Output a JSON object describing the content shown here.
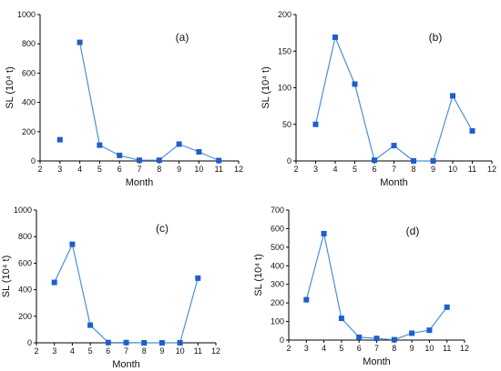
{
  "chart_data": [
    {
      "type": "line",
      "panel_label": "(a)",
      "xlabel": "Month",
      "ylabel": "SL (10⁴ t)",
      "xlim": [
        2,
        12
      ],
      "ylim": [
        0,
        1000
      ],
      "xticks": [
        "2",
        "3",
        "4",
        "5",
        "6",
        "7",
        "8",
        "9",
        "10",
        "11",
        "12"
      ],
      "yticks": [
        "0",
        "200",
        "400",
        "600",
        "800",
        "1000"
      ],
      "x": [
        3,
        4,
        5,
        6,
        7,
        8,
        9,
        10,
        11
      ],
      "y": [
        145,
        810,
        108,
        38,
        5,
        5,
        115,
        62,
        3
      ],
      "segments": [
        [
          1,
          8
        ]
      ]
    },
    {
      "type": "line",
      "panel_label": "(b)",
      "xlabel": "Month",
      "ylabel": "SL (10⁴ t)",
      "xlim": [
        2,
        12
      ],
      "ylim": [
        0,
        200
      ],
      "xticks": [
        "2",
        "3",
        "4",
        "5",
        "6",
        "7",
        "8",
        "9",
        "10",
        "11",
        "12"
      ],
      "yticks": [
        "0",
        "50",
        "100",
        "150",
        "200"
      ],
      "x": [
        3,
        4,
        5,
        6,
        7,
        8,
        9,
        10,
        11
      ],
      "y": [
        50,
        169,
        105,
        1,
        21,
        0,
        0,
        89,
        41
      ],
      "segments": [
        [
          0,
          8
        ]
      ]
    },
    {
      "type": "line",
      "panel_label": "(c)",
      "xlabel": "Month",
      "ylabel": "SL (10⁴ t)",
      "xlim": [
        2,
        12
      ],
      "ylim": [
        0,
        1000
      ],
      "xticks": [
        "2",
        "3",
        "4",
        "5",
        "6",
        "7",
        "8",
        "9",
        "10",
        "11",
        "12"
      ],
      "yticks": [
        "0",
        "200",
        "400",
        "600",
        "800",
        "1000"
      ],
      "x": [
        3,
        4,
        5,
        6,
        7,
        8,
        9,
        10,
        11
      ],
      "y": [
        455,
        742,
        133,
        2,
        2,
        0,
        0,
        0,
        487
      ],
      "segments": [
        [
          0,
          8
        ]
      ]
    },
    {
      "type": "line",
      "panel_label": "(d)",
      "xlabel": "Month",
      "ylabel": "SL (10⁴ t)",
      "xlim": [
        2,
        12
      ],
      "ylim": [
        0,
        700
      ],
      "xticks": [
        "2",
        "3",
        "4",
        "5",
        "6",
        "7",
        "8",
        "9",
        "10",
        "11",
        "12"
      ],
      "yticks": [
        "0",
        "100",
        "200",
        "300",
        "400",
        "500",
        "600",
        "700"
      ],
      "x": [
        3,
        4,
        5,
        6,
        7,
        8,
        9,
        10,
        11
      ],
      "y": [
        217,
        573,
        117,
        15,
        9,
        2,
        37,
        53,
        177
      ],
      "segments": [
        [
          0,
          8
        ]
      ]
    }
  ],
  "colors": {
    "series": "#4a90d9",
    "marker": "#1f5fc9",
    "axis": "#000000"
  }
}
